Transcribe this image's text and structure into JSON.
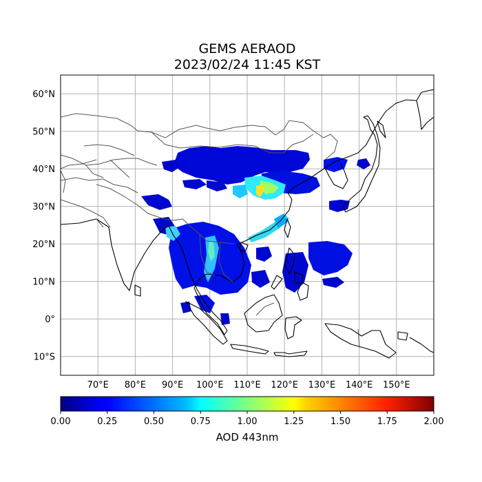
{
  "title": {
    "line1": "GEMS AERAOD",
    "line2": "2023/02/24 11:45 KST"
  },
  "map": {
    "lon_range": [
      60,
      160
    ],
    "lat_range": [
      -15,
      65
    ],
    "lat_ticks": [
      {
        "value": 60,
        "label": "60°N"
      },
      {
        "value": 50,
        "label": "50°N"
      },
      {
        "value": 40,
        "label": "40°N"
      },
      {
        "value": 30,
        "label": "30°N"
      },
      {
        "value": 20,
        "label": "20°N"
      },
      {
        "value": 10,
        "label": "10°N"
      },
      {
        "value": 0,
        "label": "0°"
      },
      {
        "value": -10,
        "label": "10°S"
      }
    ],
    "lon_ticks": [
      {
        "value": 70,
        "label": "70°E"
      },
      {
        "value": 80,
        "label": "80°E"
      },
      {
        "value": 90,
        "label": "90°E"
      },
      {
        "value": 100,
        "label": "100°E"
      },
      {
        "value": 110,
        "label": "110°E"
      },
      {
        "value": 120,
        "label": "120°E"
      },
      {
        "value": 130,
        "label": "130°E"
      },
      {
        "value": 140,
        "label": "140°E"
      },
      {
        "value": 150,
        "label": "150°E"
      }
    ],
    "grid": true,
    "colors": {
      "coastline": "#000000",
      "borders": "#555555",
      "grid": "#b0b0b0"
    }
  },
  "colorbar": {
    "label": "AOD 443nm",
    "min": 0.0,
    "max": 2.0,
    "colormap": "jet",
    "ticks": [
      "0.00",
      "0.25",
      "0.50",
      "0.75",
      "1.00",
      "1.25",
      "1.50",
      "1.75",
      "2.00"
    ]
  }
}
